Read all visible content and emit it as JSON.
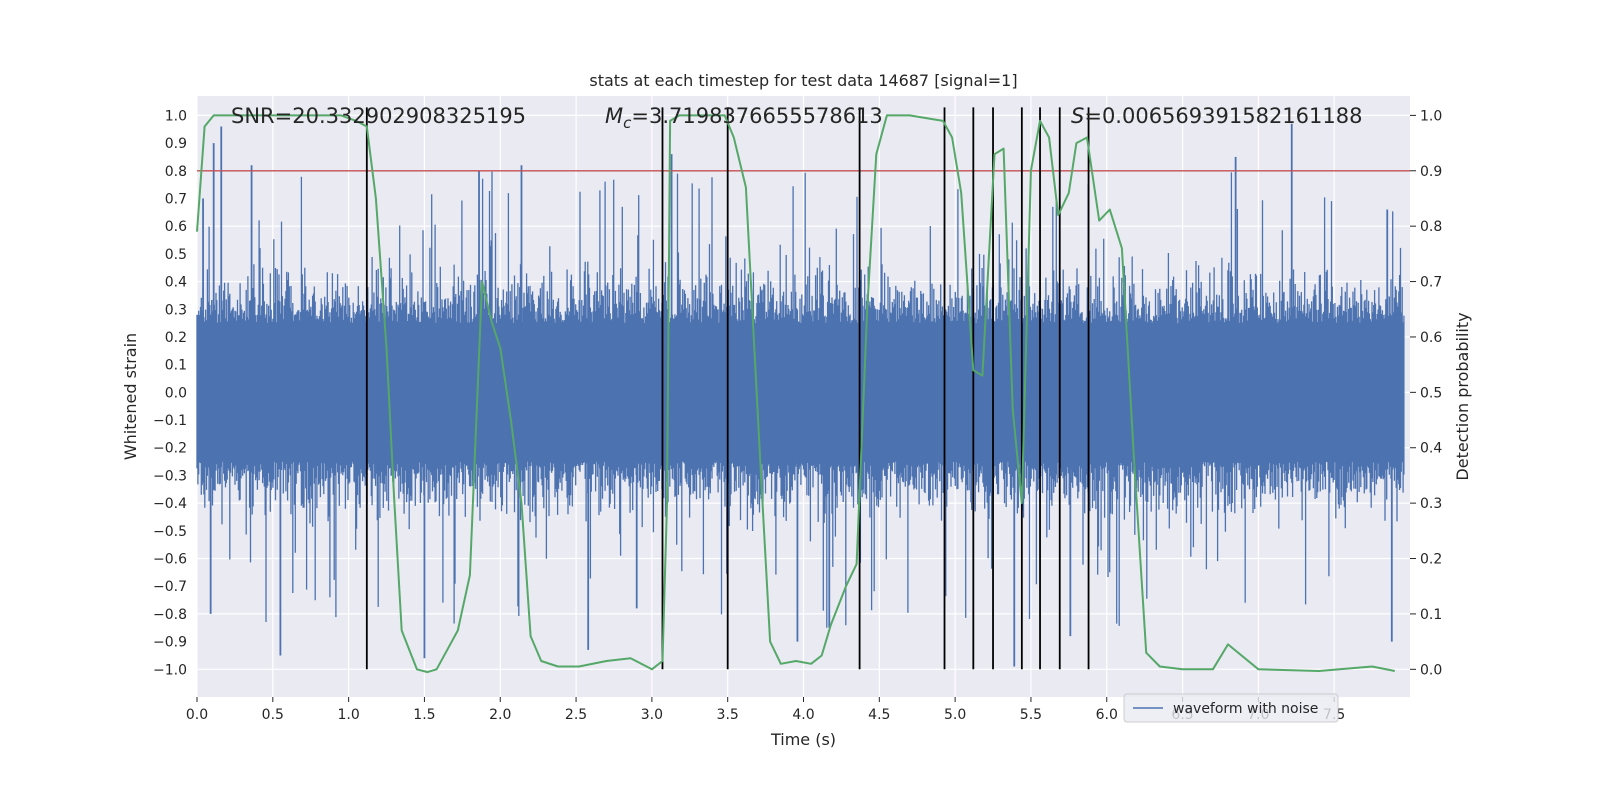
{
  "chart_data": {
    "type": "line",
    "title": "stats at each timestep for test data 14687 [signal=1]",
    "xlabel": "Time (s)",
    "ylabel_left": "Whitened strain",
    "ylabel_right": "Detection probability",
    "xlim": [
      0.0,
      8.0
    ],
    "ylim_left": [
      -1.1,
      1.07
    ],
    "ylim_right": [
      -0.05,
      1.035
    ],
    "x_ticks": [
      0.0,
      0.5,
      1.0,
      1.5,
      2.0,
      2.5,
      3.0,
      3.5,
      4.0,
      4.5,
      5.0,
      5.5,
      6.0,
      6.5,
      7.0,
      7.5
    ],
    "x_tick_labels": [
      "0.0",
      "0.5",
      "1.0",
      "1.5",
      "2.0",
      "2.5",
      "3.0",
      "3.5",
      "4.0",
      "4.5",
      "5.0",
      "5.5",
      "6.0",
      "6.5",
      "7.0",
      "7.5"
    ],
    "y_left_ticks": [
      1.0,
      0.9,
      0.8,
      0.7,
      0.6,
      0.5,
      0.4,
      0.3,
      0.2,
      0.1,
      0.0,
      -0.1,
      -0.2,
      -0.3,
      -0.4,
      -0.5,
      -0.6,
      -0.7,
      -0.8,
      -0.9,
      -1.0
    ],
    "y_left_tick_labels": [
      "1.0",
      "0.9",
      "0.8",
      "0.7",
      "0.6",
      "0.5",
      "0.4",
      "0.3",
      "0.2",
      "0.1",
      "0.0",
      "−0.1",
      "−0.2",
      "−0.3",
      "−0.4",
      "−0.5",
      "−0.6",
      "−0.7",
      "−0.8",
      "−0.9",
      "−1.0"
    ],
    "y_right_ticks": [
      1.0,
      0.9,
      0.8,
      0.7,
      0.6,
      0.5,
      0.4,
      0.3,
      0.2,
      0.1,
      0.0
    ],
    "y_right_tick_labels": [
      "1.0",
      "0.9",
      "0.8",
      "0.7",
      "0.6",
      "0.5",
      "0.4",
      "0.3",
      "0.2",
      "0.1",
      "0.0"
    ],
    "threshold": {
      "axis": "right",
      "value": 0.9,
      "color": "#c44e52"
    },
    "vertical_lines_x": [
      1.12,
      3.07,
      3.5,
      4.37,
      4.93,
      5.12,
      5.25,
      5.44,
      5.56,
      5.69,
      5.88
    ],
    "vertical_lines_range_left": [
      -1.0,
      1.0
    ],
    "annotations": {
      "snr_prefix": "SNR=",
      "snr_value": "20.332902908325195",
      "mc_symbol": "M",
      "mc_subscript": "c",
      "mc_value": "=3.7198376655578613",
      "s_symbol": "S",
      "s_value": "=0.006569391582161188"
    },
    "series": [
      {
        "name": "waveform with noise",
        "axis": "left",
        "color": "#4c72b0",
        "style": "dense noisy strain, body approx ±0.25 with spikes up to about 0.96 and down to about -0.99",
        "body_amplitude": 0.25,
        "spikes": [
          {
            "x": 0.04,
            "y": 0.7
          },
          {
            "x": 0.09,
            "y": -0.8
          },
          {
            "x": 0.11,
            "y": 0.9
          },
          {
            "x": 0.16,
            "y": 0.96
          },
          {
            "x": 0.36,
            "y": 0.82
          },
          {
            "x": 0.55,
            "y": -0.95
          },
          {
            "x": 1.5,
            "y": -0.96
          },
          {
            "x": 1.86,
            "y": 0.8
          },
          {
            "x": 2.14,
            "y": 0.82
          },
          {
            "x": 2.58,
            "y": -0.93
          },
          {
            "x": 2.9,
            "y": -0.78
          },
          {
            "x": 3.13,
            "y": 0.86
          },
          {
            "x": 3.96,
            "y": -0.9
          },
          {
            "x": 4.17,
            "y": -0.85
          },
          {
            "x": 5.39,
            "y": -0.99
          },
          {
            "x": 5.76,
            "y": -0.88
          },
          {
            "x": 6.85,
            "y": 0.85
          },
          {
            "x": 7.22,
            "y": 0.97
          },
          {
            "x": 7.88,
            "y": -0.9
          },
          {
            "x": 7.85,
            "y": 0.66
          }
        ]
      },
      {
        "name": "detection probability",
        "axis": "right",
        "color": "#55a868",
        "x": [
          0.0,
          0.05,
          0.11,
          0.2,
          0.4,
          0.6,
          0.8,
          0.95,
          1.05,
          1.12,
          1.18,
          1.25,
          1.3,
          1.35,
          1.45,
          1.52,
          1.58,
          1.64,
          1.72,
          1.8,
          1.88,
          1.94,
          2.0,
          2.07,
          2.14,
          2.2,
          2.27,
          2.38,
          2.52,
          2.7,
          2.86,
          3.0,
          3.07,
          3.1,
          3.12,
          3.18,
          3.3,
          3.48,
          3.54,
          3.62,
          3.72,
          3.78,
          3.85,
          3.95,
          4.05,
          4.12,
          4.18,
          4.28,
          4.35,
          4.42,
          4.48,
          4.55,
          4.7,
          4.92,
          4.98,
          5.04,
          5.12,
          5.18,
          5.26,
          5.32,
          5.38,
          5.44,
          5.5,
          5.56,
          5.62,
          5.68,
          5.75,
          5.8,
          5.87,
          5.95,
          6.02,
          6.1,
          6.18,
          6.26,
          6.35,
          6.5,
          6.6,
          6.7,
          6.8,
          7.0,
          7.4,
          7.75,
          7.9
        ],
        "y": [
          0.79,
          0.98,
          1.0,
          1.0,
          1.0,
          1.0,
          1.0,
          1.0,
          0.99,
          0.98,
          0.85,
          0.58,
          0.31,
          0.07,
          0.0,
          -0.005,
          0.0,
          0.03,
          0.07,
          0.17,
          0.7,
          0.63,
          0.58,
          0.45,
          0.3,
          0.06,
          0.015,
          0.005,
          0.005,
          0.015,
          0.02,
          0.0,
          0.015,
          0.3,
          0.99,
          1.0,
          1.0,
          1.0,
          0.96,
          0.87,
          0.35,
          0.05,
          0.01,
          0.015,
          0.01,
          0.025,
          0.08,
          0.15,
          0.19,
          0.65,
          0.93,
          1.0,
          1.0,
          0.99,
          0.96,
          0.86,
          0.54,
          0.53,
          0.93,
          0.94,
          0.47,
          0.3,
          0.9,
          0.99,
          0.96,
          0.82,
          0.86,
          0.95,
          0.96,
          0.81,
          0.83,
          0.76,
          0.38,
          0.03,
          0.005,
          0.0,
          0.0,
          0.0,
          0.045,
          0.0,
          -0.003,
          0.005,
          -0.003
        ]
      }
    ],
    "legend": {
      "placement": "lower-right",
      "entries": [
        "waveform with noise"
      ]
    }
  }
}
